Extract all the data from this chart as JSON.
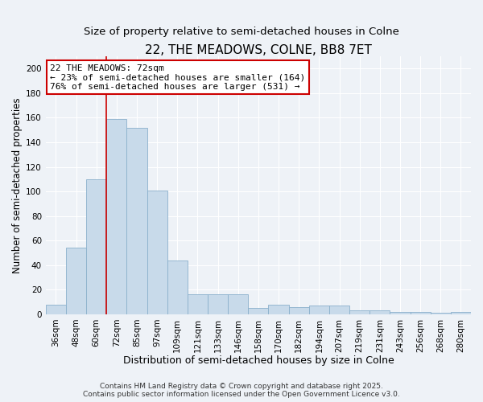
{
  "title": "22, THE MEADOWS, COLNE, BB8 7ET",
  "subtitle": "Size of property relative to semi-detached houses in Colne",
  "xlabel": "Distribution of semi-detached houses by size in Colne",
  "ylabel": "Number of semi-detached properties",
  "categories": [
    "36sqm",
    "48sqm",
    "60sqm",
    "72sqm",
    "85sqm",
    "97sqm",
    "109sqm",
    "121sqm",
    "133sqm",
    "146sqm",
    "158sqm",
    "170sqm",
    "182sqm",
    "194sqm",
    "207sqm",
    "219sqm",
    "231sqm",
    "243sqm",
    "256sqm",
    "268sqm",
    "280sqm"
  ],
  "values": [
    8,
    54,
    110,
    159,
    152,
    101,
    44,
    16,
    16,
    16,
    5,
    8,
    6,
    7,
    7,
    3,
    3,
    2,
    2,
    1,
    2
  ],
  "bar_color": "#c8daea",
  "bar_edge_color": "#8ab0cc",
  "red_line_index": 3,
  "annotation_line1": "22 THE MEADOWS: 72sqm",
  "annotation_line2": "← 23% of semi-detached houses are smaller (164)",
  "annotation_line3": "76% of semi-detached houses are larger (531) →",
  "annotation_box_color": "#ffffff",
  "annotation_box_edge": "#cc0000",
  "red_line_color": "#cc0000",
  "ylim": [
    0,
    210
  ],
  "yticks": [
    0,
    20,
    40,
    60,
    80,
    100,
    120,
    140,
    160,
    180,
    200
  ],
  "background_color": "#eef2f7",
  "grid_color": "#ffffff",
  "footer_line1": "Contains HM Land Registry data © Crown copyright and database right 2025.",
  "footer_line2": "Contains public sector information licensed under the Open Government Licence v3.0.",
  "title_fontsize": 11,
  "subtitle_fontsize": 9.5,
  "xlabel_fontsize": 9,
  "ylabel_fontsize": 8.5,
  "tick_fontsize": 7.5,
  "annot_fontsize": 8,
  "footer_fontsize": 6.5
}
